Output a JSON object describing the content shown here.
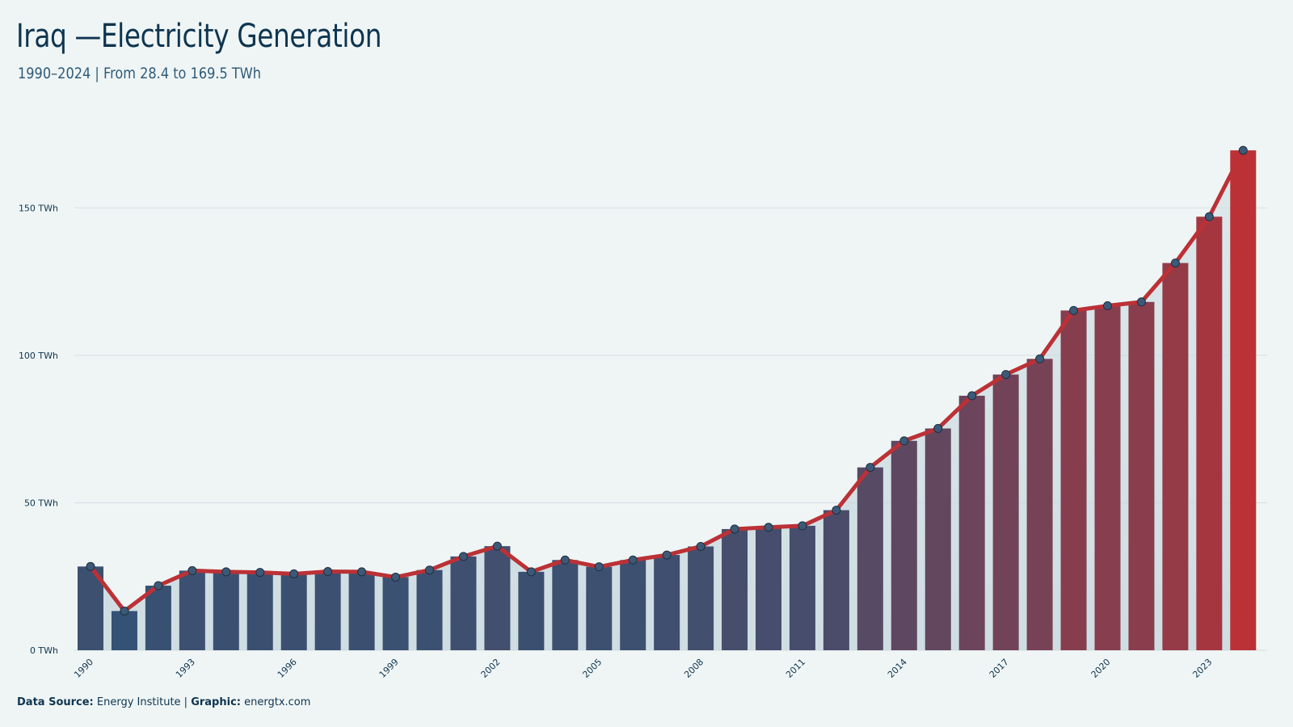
{
  "header": {
    "title": "Iraq —Electricity Generation",
    "subtitle": "1990–2024 | From 28.4 to 169.5 TWh"
  },
  "footer": {
    "source_label": "Data Source:",
    "source_value": "Energy Institute |",
    "graphic_label": "Graphic:",
    "graphic_value": "energtx.com"
  },
  "colors": {
    "background": "#eff5f5",
    "bar_start": "#2c5478",
    "bar_end": "#bb3136",
    "line": "#bb3136",
    "marker": "#3c5a78",
    "grid": "#d5dfe3",
    "text": "#0e3550"
  },
  "chart_data": {
    "type": "bar",
    "title": "Iraq —Electricity Generation",
    "subtitle": "1990–2024 | From 28.4 to 169.5 TWh",
    "xlabel": "",
    "ylabel": "",
    "ylim": [
      0,
      172
    ],
    "yticks": [
      0,
      50,
      100,
      150
    ],
    "ytick_labels": [
      "0 TWh",
      "50 TWh",
      "100 TWh",
      "150 TWh"
    ],
    "xtick_labels": [
      "1990",
      "1993",
      "1996",
      "1999",
      "2002",
      "2005",
      "2008",
      "2011",
      "2014",
      "2017",
      "2020",
      "2023"
    ],
    "grid": true,
    "categories": [
      "1990",
      "1991",
      "1992",
      "1993",
      "1994",
      "1995",
      "1996",
      "1997",
      "1998",
      "1999",
      "2000",
      "2001",
      "2002",
      "2003",
      "2004",
      "2005",
      "2006",
      "2007",
      "2008",
      "2009",
      "2010",
      "2011",
      "2012",
      "2013",
      "2014",
      "2015",
      "2016",
      "2017",
      "2018",
      "2019",
      "2020",
      "2021",
      "2022",
      "2023",
      "2024"
    ],
    "values": [
      28.4,
      13.3,
      21.9,
      27.0,
      26.6,
      26.4,
      25.9,
      26.7,
      26.6,
      24.8,
      27.2,
      31.8,
      35.3,
      26.6,
      30.6,
      28.3,
      30.6,
      32.3,
      35.2,
      41.1,
      41.7,
      42.2,
      47.5,
      62.0,
      71.0,
      75.2,
      86.3,
      93.5,
      98.8,
      115.2,
      116.8,
      118.1,
      131.3,
      147.0,
      169.5
    ]
  }
}
